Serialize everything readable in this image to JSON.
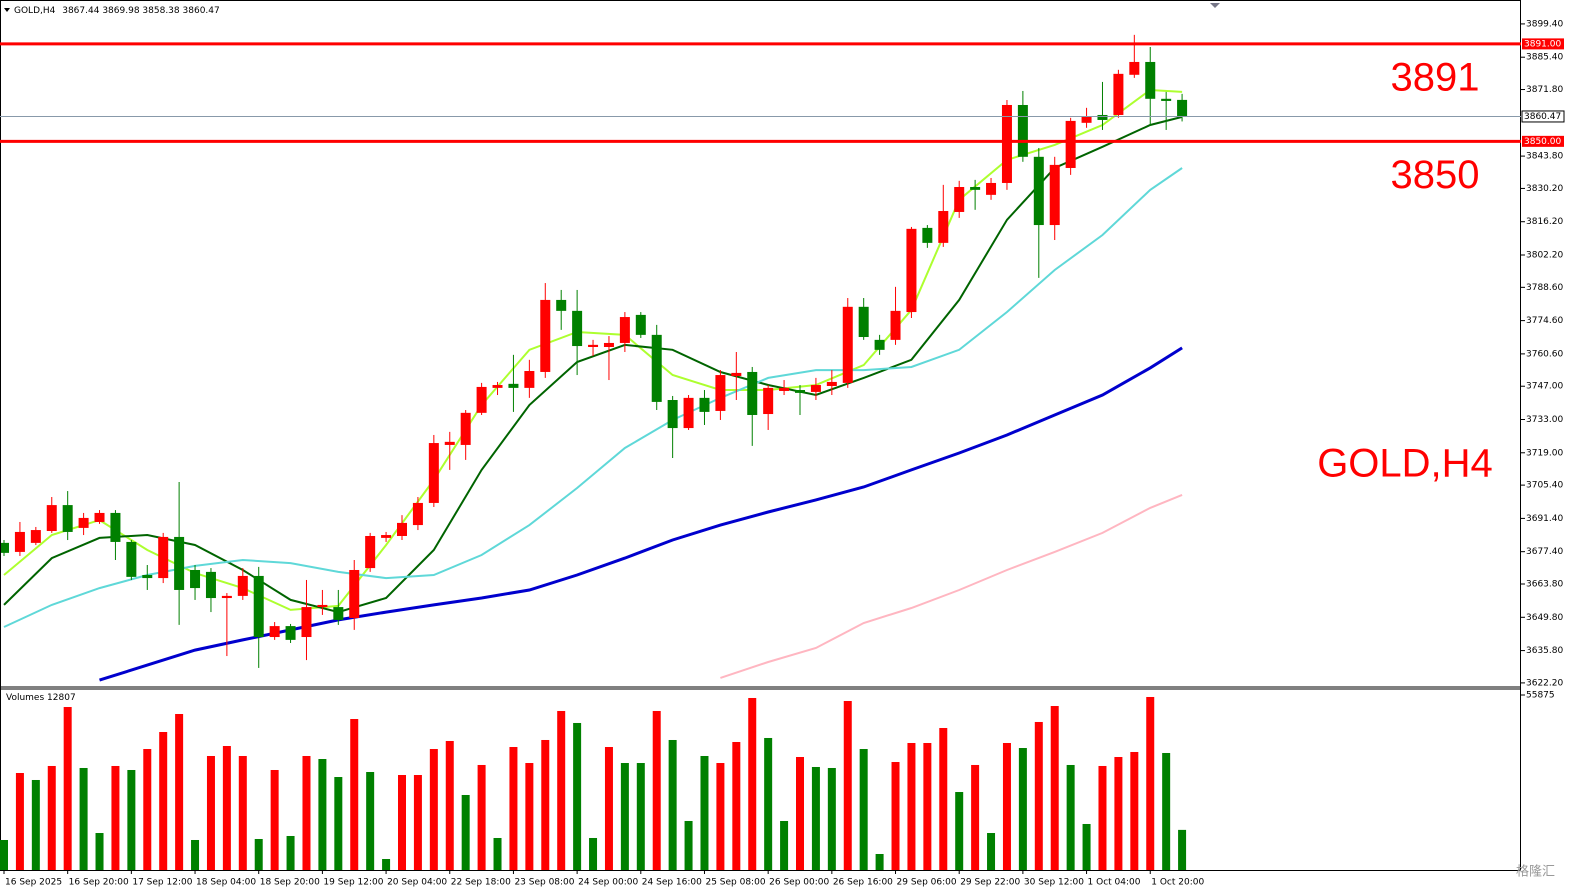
{
  "chart_data": {
    "type": "candlestick",
    "symbol": "GOLD,H4",
    "categories": [
      "16 Sep 2025",
      null,
      null,
      null,
      "16 Sep 20:00",
      null,
      null,
      null,
      "17 Sep 12:00",
      null,
      null,
      null,
      "18 Sep 04:00",
      null,
      null,
      null,
      "18 Sep 20:00",
      null,
      null,
      null,
      "19 Sep 12:00",
      null,
      null,
      null,
      "20 Sep 04:00",
      null,
      null,
      null,
      "22 Sep 18:00",
      null,
      null,
      null,
      "23 Sep 08:00",
      null,
      null,
      null,
      "24 Sep 00:00",
      null,
      null,
      null,
      "24 Sep 16:00",
      null,
      null,
      null,
      "25 Sep 08:00",
      null,
      null,
      null,
      "26 Sep 00:00",
      null,
      null,
      null,
      "26 Sep 16:00",
      null,
      null,
      null,
      "29 Sep 06:00",
      null,
      null,
      null,
      "29 Sep 22:00",
      null,
      null,
      null,
      "30 Sep 12:00",
      null,
      null,
      null,
      "1 Oct 04:00",
      null,
      null,
      null,
      "1 Oct 20:00",
      null,
      null
    ],
    "open": [
      3681.1,
      3677.3,
      3681.1,
      3686.1,
      3697.0,
      3687.4,
      3689.9,
      3693.7,
      3681.5,
      3667.6,
      3666.3,
      3683.6,
      3669.7,
      3668.9,
      3657.9,
      3658.8,
      3667.2,
      3641.5,
      3646.1,
      3641.5,
      3654.1,
      3654.1,
      3649.5,
      3670.5,
      3683.2,
      3684.0,
      3688.6,
      3697.9,
      3722.3,
      3722.3,
      3735.8,
      3746.3,
      3748.0,
      3746.3,
      3753.0,
      3783.3,
      3778.7,
      3763.5,
      3763.5,
      3765.2,
      3777.0,
      3768.6,
      3741.2,
      3729.4,
      3742.1,
      3736.6,
      3751.3,
      3753.0,
      3735.3,
      3745.0,
      3745.4,
      3744.6,
      3747.1,
      3748.4,
      3780.4,
      3766.5,
      3766.5,
      3778.2,
      3813.6,
      3807.3,
      3820.3,
      3830.8,
      3827.5,
      3832.5,
      3865.3,
      3843.5,
      3814.8,
      3838.8,
      3857.8,
      3861.1,
      3861.1,
      3878.0,
      3883.4,
      3867.9,
      3867.44
    ],
    "high": [
      3682.3,
      3689.9,
      3687.8,
      3700.4,
      3702.9,
      3693.7,
      3694.9,
      3694.9,
      3682.3,
      3671.8,
      3685.3,
      3706.7,
      3671.8,
      3670.5,
      3660.0,
      3670.5,
      3671.0,
      3647.8,
      3647.0,
      3665.5,
      3661.3,
      3661.3,
      3673.9,
      3685.3,
      3685.7,
      3692.8,
      3700.4,
      3726.5,
      3727.8,
      3737.0,
      3748.4,
      3748.8,
      3760.2,
      3758.1,
      3790.4,
      3787.5,
      3787.5,
      3766.5,
      3768.1,
      3778.2,
      3778.2,
      3772.8,
      3742.9,
      3743.3,
      3745.4,
      3753.8,
      3761.4,
      3755.1,
      3747.5,
      3749.6,
      3747.5,
      3750.5,
      3753.8,
      3784.1,
      3784.1,
      3768.6,
      3788.8,
      3814.0,
      3814.8,
      3831.7,
      3833.4,
      3833.8,
      3834.6,
      3867.4,
      3871.2,
      3847.2,
      3843.5,
      3859.9,
      3864.1,
      3875.0,
      3880.1,
      3894.8,
      3889.7,
      3870.8,
      3869.98
    ],
    "low": [
      3675.6,
      3675.6,
      3680.2,
      3685.3,
      3682.3,
      3684.4,
      3689.1,
      3673.9,
      3665.5,
      3661.3,
      3664.2,
      3646.6,
      3657.1,
      3652.0,
      3633.5,
      3657.1,
      3628.5,
      3640.3,
      3639.0,
      3631.8,
      3650.8,
      3646.6,
      3644.5,
      3668.9,
      3681.5,
      3682.3,
      3686.5,
      3696.2,
      3711.8,
      3716.0,
      3734.9,
      3743.3,
      3736.2,
      3742.1,
      3750.5,
      3770.7,
      3751.7,
      3759.7,
      3749.6,
      3761.4,
      3767.3,
      3737.0,
      3716.8,
      3728.6,
      3730.7,
      3732.8,
      3741.2,
      3721.9,
      3728.6,
      3743.3,
      3734.9,
      3741.2,
      3743.3,
      3746.3,
      3766.5,
      3760.2,
      3764.4,
      3775.7,
      3805.2,
      3805.6,
      3817.8,
      3821.2,
      3825.4,
      3829.6,
      3841.4,
      3792.6,
      3808.5,
      3835.9,
      3855.7,
      3854.8,
      3859.9,
      3876.7,
      3856.5,
      3854.8,
      3858.38
    ],
    "close": [
      3676.9,
      3685.7,
      3686.5,
      3697.0,
      3685.7,
      3691.6,
      3693.7,
      3681.5,
      3666.8,
      3666.3,
      3683.6,
      3661.3,
      3662.1,
      3657.9,
      3658.8,
      3667.2,
      3641.5,
      3646.1,
      3640.3,
      3654.1,
      3655.0,
      3648.7,
      3669.7,
      3684.0,
      3684.4,
      3689.5,
      3697.9,
      3723.1,
      3723.6,
      3735.8,
      3746.7,
      3747.5,
      3746.3,
      3753.4,
      3783.3,
      3778.7,
      3763.9,
      3764.4,
      3765.2,
      3776.1,
      3768.6,
      3740.4,
      3729.4,
      3742.1,
      3736.2,
      3751.7,
      3752.6,
      3734.9,
      3746.3,
      3746.3,
      3744.2,
      3747.5,
      3748.8,
      3780.4,
      3767.7,
      3762.3,
      3778.7,
      3813.2,
      3807.3,
      3820.7,
      3830.8,
      3829.6,
      3832.5,
      3865.3,
      3843.5,
      3814.8,
      3840.1,
      3858.6,
      3860.3,
      3859.0,
      3878.4,
      3883.4,
      3867.9,
      3867.0,
      3860.47
    ],
    "up_color": "#ff0000",
    "down_color": "#008000",
    "ylim": [
      3620.9,
      3908.2
    ],
    "yticks": [
      {
        "value": 3899.4,
        "label": "3899.40"
      },
      {
        "value": 3885.4,
        "label": "3885.40"
      },
      {
        "value": 3871.8,
        "label": "3871.80"
      },
      {
        "value": 3843.8,
        "label": "3843.80"
      },
      {
        "value": 3830.2,
        "label": "3830.20"
      },
      {
        "value": 3816.2,
        "label": "3816.20"
      },
      {
        "value": 3802.2,
        "label": "3802.20"
      },
      {
        "value": 3788.6,
        "label": "3788.60"
      },
      {
        "value": 3774.6,
        "label": "3774.60"
      },
      {
        "value": 3760.6,
        "label": "3760.60"
      },
      {
        "value": 3747,
        "label": "3747.00"
      },
      {
        "value": 3733,
        "label": "3733.00"
      },
      {
        "value": 3719,
        "label": "3719.00"
      },
      {
        "value": 3705.4,
        "label": "3705.40"
      },
      {
        "value": 3691.4,
        "label": "3691.40"
      },
      {
        "value": 3677.4,
        "label": "3677.40"
      },
      {
        "value": 3663.8,
        "label": "3663.80"
      },
      {
        "value": 3649.8,
        "label": "3649.80"
      },
      {
        "value": 3635.8,
        "label": "3635.80"
      },
      {
        "value": 3622.2,
        "label": "3622.20"
      }
    ],
    "levels": [
      {
        "value": 3891,
        "label": "3891",
        "axis_label": "3891.00",
        "color": "#ff0000"
      },
      {
        "value": 3850,
        "label": "3850",
        "axis_label": "3850.00",
        "color": "#ff0000"
      }
    ],
    "current_price_color": "#8899aa",
    "series": [
      {
        "color": "#adff2f",
        "x": [
          0,
          3,
          6,
          9,
          12,
          15,
          18,
          21,
          24,
          27,
          30,
          33,
          36,
          39,
          42,
          45,
          48,
          51,
          54,
          57,
          60,
          63,
          66,
          69,
          72,
          74
        ],
        "values": [
          3667.6,
          3684.4,
          3690.7,
          3678.1,
          3668.4,
          3662.1,
          3652.9,
          3654.6,
          3680.2,
          3707.6,
          3739.1,
          3762.3,
          3769.8,
          3768.6,
          3751.7,
          3745.4,
          3745.4,
          3747.5,
          3755.9,
          3779.1,
          3825.4,
          3842.2,
          3848.5,
          3856.9,
          3871.6,
          3870.8
        ]
      },
      {
        "color": "#006400",
        "x": [
          0,
          3,
          6,
          9,
          12,
          15,
          18,
          21,
          24,
          27,
          30,
          33,
          36,
          39,
          42,
          45,
          48,
          51,
          54,
          57,
          60,
          63,
          66,
          69,
          72,
          74
        ],
        "values": [
          3655.0,
          3674.7,
          3683.2,
          3684.4,
          3680.2,
          3669.7,
          3657.1,
          3652.0,
          3657.9,
          3678.1,
          3711.8,
          3739.1,
          3757.2,
          3764.4,
          3762.3,
          3753.0,
          3747.5,
          3743.3,
          3750.5,
          3758.1,
          3783.3,
          3817.0,
          3838.8,
          3847.7,
          3856.9,
          3860.3
        ]
      },
      {
        "color": "#5fd8d8",
        "x": [
          0,
          3,
          6,
          9,
          12,
          15,
          18,
          21,
          24,
          27,
          30,
          33,
          36,
          39,
          42,
          45,
          48,
          51,
          54,
          57,
          60,
          63,
          66,
          69,
          72,
          74
        ],
        "values": [
          3645.7,
          3655.0,
          3662.1,
          3667.6,
          3671.4,
          3673.9,
          3672.6,
          3668.9,
          3666.3,
          3667.6,
          3676.0,
          3688.6,
          3704.2,
          3721.0,
          3732.8,
          3742.1,
          3750.5,
          3753.8,
          3753.8,
          3755.1,
          3762.3,
          3778.2,
          3795.9,
          3810.6,
          3829.6,
          3838.8
        ]
      },
      {
        "color": "#0000cd",
        "x": [
          0,
          3,
          6,
          9,
          12,
          15,
          18,
          21,
          24,
          27,
          30,
          33,
          36,
          39,
          42,
          45,
          48,
          51,
          54,
          57,
          60,
          63,
          66,
          69,
          72,
          74
        ],
        "values": [
          null,
          null,
          3623.4,
          3629.7,
          3636.0,
          3640.3,
          3644.5,
          3648.7,
          3652.0,
          3655.0,
          3657.9,
          3661.3,
          3667.6,
          3674.7,
          3682.3,
          3688.6,
          3694.1,
          3699.2,
          3704.6,
          3711.8,
          3718.9,
          3726.5,
          3734.9,
          3743.3,
          3754.7,
          3763.1
        ]
      },
      {
        "color": "#ffb6c1",
        "x": [
          0,
          3,
          6,
          9,
          12,
          15,
          18,
          21,
          24,
          27,
          30,
          33,
          36,
          39,
          42,
          45,
          48,
          51,
          54,
          57,
          60,
          63,
          66,
          69,
          72,
          74
        ],
        "values": [
          null,
          null,
          null,
          null,
          null,
          null,
          null,
          null,
          null,
          null,
          null,
          null,
          null,
          null,
          null,
          3624.3,
          3631.0,
          3636.9,
          3647.4,
          3653.7,
          3661.3,
          3669.7,
          3677.3,
          3685.3,
          3695.8,
          3701.3
        ]
      }
    ],
    "volume": {
      "title": "Volumes",
      "values": [
        9580,
        30970,
        28740,
        33210,
        52040,
        32570,
        11810,
        33210,
        31930,
        38630,
        44060,
        49810,
        9580,
        36400,
        39590,
        36400,
        9900,
        31930,
        10860,
        36400,
        35440,
        29690,
        48210,
        31290,
        3510,
        30330,
        30330,
        38630,
        41190,
        23950,
        33530,
        10220,
        39270,
        34160,
        41510,
        50770,
        46940,
        10220,
        39270,
        34160,
        34160,
        50770,
        41510,
        15650,
        36400,
        34160,
        40870,
        54920,
        42150,
        15650,
        36080,
        32890,
        32570,
        53960,
        38630,
        5110,
        34480,
        40550,
        40550,
        45340,
        24900,
        33530,
        11810,
        40550,
        38950,
        47260,
        52360,
        33530,
        14690,
        33210,
        36080,
        37680,
        55240,
        37360,
        12807
      ],
      "colors": [
        "green",
        "red",
        "green",
        "red",
        "red",
        "green",
        "green",
        "red",
        "green",
        "red",
        "red",
        "red",
        "green",
        "red",
        "red",
        "red",
        "green",
        "red",
        "green",
        "red",
        "green",
        "green",
        "red",
        "green",
        "green",
        "red",
        "red",
        "red",
        "red",
        "green",
        "red",
        "green",
        "red",
        "red",
        "red",
        "red",
        "green",
        "green",
        "red",
        "green",
        "green",
        "red",
        "green",
        "green",
        "green",
        "red",
        "red",
        "red",
        "green",
        "green",
        "red",
        "green",
        "green",
        "red",
        "green",
        "green",
        "red",
        "red",
        "red",
        "red",
        "green",
        "red",
        "green",
        "red",
        "green",
        "red",
        "red",
        "green",
        "green",
        "red",
        "red",
        "red",
        "red",
        "green",
        "green"
      ],
      "ylim": [
        0,
        57790
      ],
      "yticks": [
        55875
      ]
    },
    "watermark": "格隆汇"
  }
}
